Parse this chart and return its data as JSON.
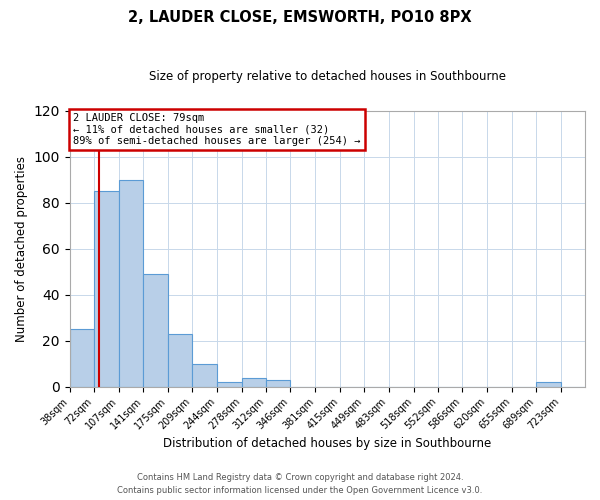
{
  "title": "2, LAUDER CLOSE, EMSWORTH, PO10 8PX",
  "subtitle": "Size of property relative to detached houses in Southbourne",
  "xlabel": "Distribution of detached houses by size in Southbourne",
  "ylabel": "Number of detached properties",
  "bin_labels": [
    "38sqm",
    "72sqm",
    "107sqm",
    "141sqm",
    "175sqm",
    "209sqm",
    "244sqm",
    "278sqm",
    "312sqm",
    "346sqm",
    "381sqm",
    "415sqm",
    "449sqm",
    "483sqm",
    "518sqm",
    "552sqm",
    "586sqm",
    "620sqm",
    "655sqm",
    "689sqm",
    "723sqm"
  ],
  "bar_heights": [
    25,
    85,
    90,
    49,
    23,
    10,
    2,
    4,
    3,
    0,
    0,
    0,
    0,
    0,
    0,
    0,
    0,
    0,
    0,
    2,
    0
  ],
  "bar_color": "#b8cfe8",
  "bar_edge_color": "#5b9bd5",
  "vline_color": "#cc0000",
  "ylim": [
    0,
    120
  ],
  "yticks": [
    0,
    20,
    40,
    60,
    80,
    100,
    120
  ],
  "annotation_title": "2 LAUDER CLOSE: 79sqm",
  "annotation_line1": "← 11% of detached houses are smaller (32)",
  "annotation_line2": "89% of semi-detached houses are larger (254) →",
  "annotation_box_color": "#cc0000",
  "footer_line1": "Contains HM Land Registry data © Crown copyright and database right 2024.",
  "footer_line2": "Contains public sector information licensed under the Open Government Licence v3.0.",
  "bin_edges": [
    38,
    72,
    107,
    141,
    175,
    209,
    244,
    278,
    312,
    346,
    381,
    415,
    449,
    483,
    518,
    552,
    586,
    620,
    655,
    689,
    723,
    757
  ],
  "property_sqm": 79,
  "background_color": "#ffffff",
  "grid_color": "#c8d8ea"
}
